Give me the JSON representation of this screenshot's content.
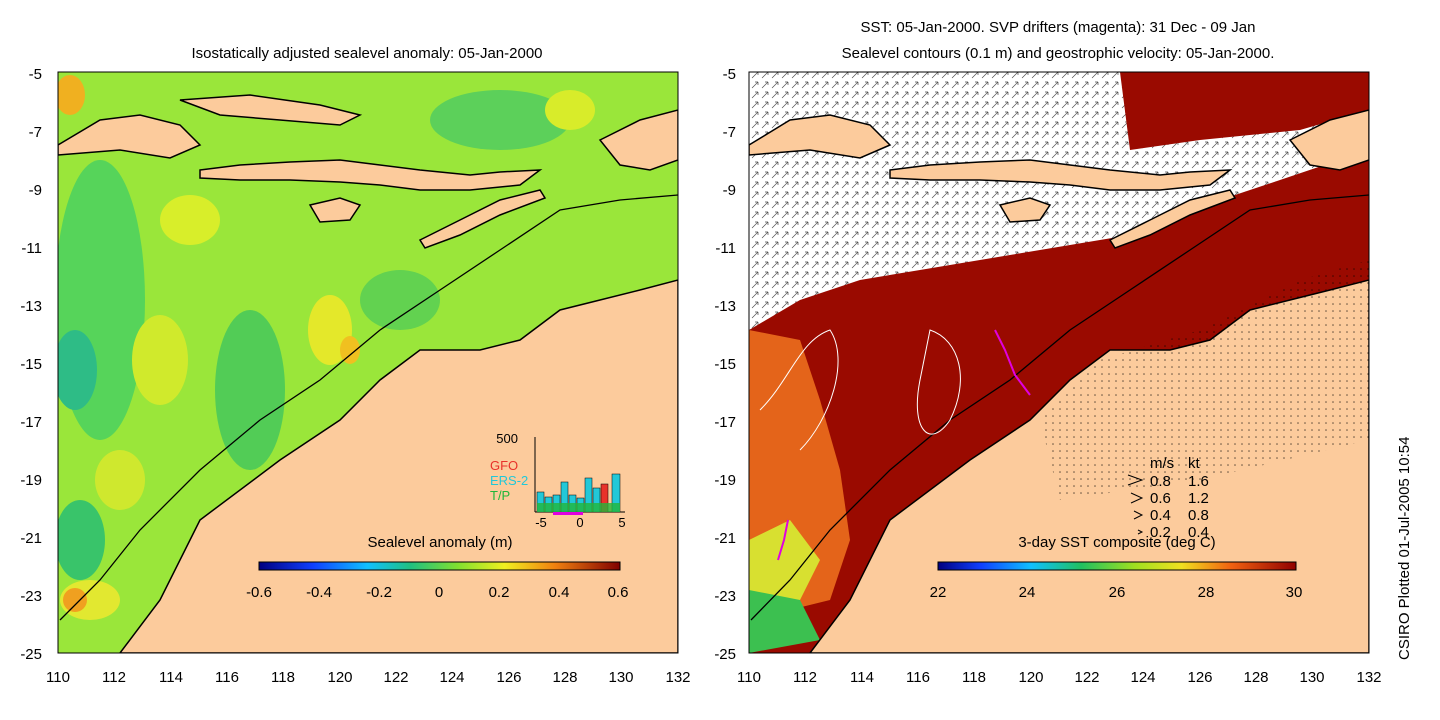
{
  "left_panel": {
    "title": "Isostatically adjusted sealevel anomaly: 05-Jan-2000",
    "y_ticks": [
      "-5",
      "-7",
      "-9",
      "-11",
      "-13",
      "-15",
      "-17",
      "-19",
      "-21",
      "-23",
      "-25"
    ],
    "x_ticks": [
      "110",
      "112",
      "114",
      "116",
      "118",
      "120",
      "122",
      "124",
      "126",
      "128",
      "130",
      "132"
    ],
    "colorbar": {
      "label": "Sealevel anomaly (m)",
      "ticks": [
        "-0.6",
        "-0.4",
        "-0.2",
        "0",
        "0.2",
        "0.4",
        "0.6"
      ]
    },
    "histogram": {
      "y_max_label": "500",
      "legend": [
        {
          "label": "GFO",
          "color": "#e8322a"
        },
        {
          "label": "ERS-2",
          "color": "#22c8d8"
        },
        {
          "label": "T/P",
          "color": "#22b63a"
        }
      ],
      "x_ticks": [
        "-5",
        "0",
        "5"
      ]
    }
  },
  "right_panel": {
    "title_line1": "SST: 05-Jan-2000. SVP drifters (magenta): 31 Dec - 09 Jan",
    "title_line2": "Sealevel contours (0.1 m) and geostrophic velocity: 05-Jan-2000.",
    "y_ticks": [
      "-5",
      "-7",
      "-9",
      "-11",
      "-13",
      "-15",
      "-17",
      "-19",
      "-21",
      "-23",
      "-25"
    ],
    "x_ticks": [
      "110",
      "112",
      "114",
      "116",
      "118",
      "120",
      "122",
      "124",
      "126",
      "128",
      "130",
      "132"
    ],
    "colorbar": {
      "label": "3-day SST composite (deg C)",
      "ticks": [
        "22",
        "24",
        "26",
        "28",
        "30"
      ]
    },
    "velocity_legend": {
      "header_ms": "m/s",
      "header_kt": "kt",
      "rows": [
        {
          "ms": "0.8",
          "kt": "1.6"
        },
        {
          "ms": "0.6",
          "kt": "1.2"
        },
        {
          "ms": "0.4",
          "kt": "0.8"
        },
        {
          "ms": "0.2",
          "kt": "0.4"
        }
      ]
    }
  },
  "footer_vertical": "CSIRO Plotted 01-Jul-2005 10:54",
  "colors": {
    "land": "#fccb9c",
    "sla_green": "#7fe038",
    "sla_yellow": "#d6ec28",
    "sst_red": "#9a0a00",
    "sst_orange": "#e4641a"
  }
}
